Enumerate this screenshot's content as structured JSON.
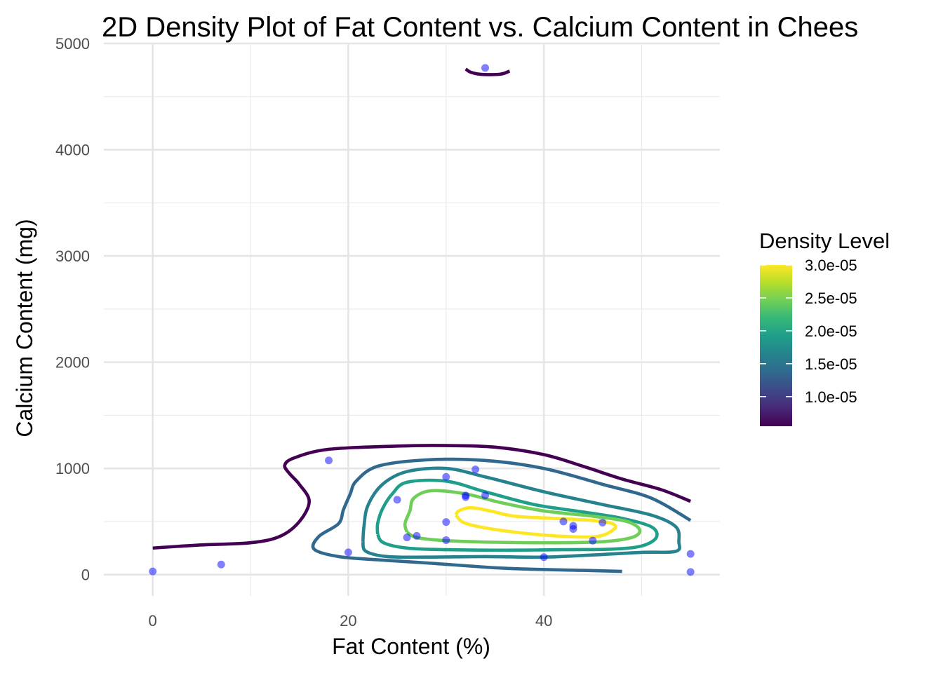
{
  "chart_data": {
    "type": "contour",
    "title": "2D Density Plot of Fat Content vs. Calcium Content in Chees",
    "xlabel": "Fat Content (%)",
    "ylabel": "Calcium Content (mg)",
    "xlim": [
      -5,
      58
    ],
    "ylim": [
      -200,
      5000
    ],
    "x_ticks": [
      0,
      20,
      40
    ],
    "x_tick_labels": [
      "0",
      "20",
      "40"
    ],
    "y_ticks": [
      0,
      1000,
      2000,
      3000,
      4000,
      5000
    ],
    "y_tick_labels": [
      "0",
      "1000",
      "2000",
      "3000",
      "4000",
      "5000"
    ],
    "grid": true,
    "points": {
      "color": "#0000ff",
      "opacity": 0.5,
      "x": [
        0,
        7,
        18,
        20,
        25,
        26,
        27,
        30,
        30,
        30,
        32,
        32,
        33,
        34,
        34,
        40,
        42,
        43,
        43,
        45,
        46,
        55,
        55
      ],
      "y": [
        30,
        95,
        1075,
        210,
        705,
        350,
        365,
        920,
        495,
        325,
        745,
        730,
        990,
        745,
        4770,
        165,
        500,
        460,
        430,
        320,
        490,
        195,
        25
      ]
    },
    "contours": [
      {
        "level": 5e-06,
        "color": "#440154",
        "paths": [
          [
            [
              0,
              250
            ],
            [
              5,
              280
            ],
            [
              10,
              300
            ],
            [
              13,
              360
            ],
            [
              15,
              500
            ],
            [
              16,
              690
            ],
            [
              15,
              850
            ],
            [
              14,
              950
            ],
            [
              13.5,
              1030
            ],
            [
              14.5,
              1100
            ],
            [
              18,
              1180
            ],
            [
              25,
              1210
            ],
            [
              30,
              1215
            ],
            [
              35,
              1200
            ],
            [
              40,
              1130
            ],
            [
              44,
              1020
            ],
            [
              48,
              900
            ],
            [
              52,
              800
            ],
            [
              55,
              690
            ]
          ],
          [
            [
              32,
              4760
            ],
            [
              32.5,
              4730
            ],
            [
              33.5,
              4710
            ],
            [
              35.5,
              4710
            ],
            [
              36.5,
              4740
            ]
          ]
        ]
      },
      {
        "level": 1e-05,
        "color": "#31688e",
        "paths": [
          [
            [
              48,
              30
            ],
            [
              44,
              40
            ],
            [
              36,
              60
            ],
            [
              28,
              110
            ],
            [
              23,
              140
            ],
            [
              19,
              170
            ],
            [
              16.5,
              240
            ],
            [
              17,
              360
            ],
            [
              19,
              480
            ],
            [
              19.5,
              610
            ],
            [
              20.2,
              760
            ],
            [
              20.8,
              880
            ],
            [
              23,
              1020
            ],
            [
              28,
              1080
            ],
            [
              34,
              1075
            ],
            [
              40,
              1000
            ],
            [
              46,
              850
            ],
            [
              51,
              720
            ],
            [
              55,
              510
            ]
          ]
        ]
      },
      {
        "level": 1.5e-05,
        "color": "#26828e",
        "paths": [
          [
            [
              21.5,
              310
            ],
            [
              21.8,
              220
            ],
            [
              24,
              170
            ],
            [
              28,
              165
            ],
            [
              34,
              170
            ],
            [
              40,
              165
            ],
            [
              46,
              190
            ],
            [
              50,
              210
            ],
            [
              53.5,
              220
            ],
            [
              53.8,
              310
            ],
            [
              53.5,
              450
            ],
            [
              51,
              560
            ],
            [
              46,
              660
            ],
            [
              40,
              780
            ],
            [
              34,
              920
            ],
            [
              30,
              1000
            ],
            [
              26,
              970
            ],
            [
              23.5,
              850
            ],
            [
              22,
              650
            ],
            [
              21.6,
              450
            ],
            [
              21.5,
              310
            ]
          ]
        ]
      },
      {
        "level": 2e-05,
        "color": "#1f9e89",
        "paths": [
          [
            [
              23,
              380
            ],
            [
              23.6,
              300
            ],
            [
              26,
              250
            ],
            [
              30,
              235
            ],
            [
              36,
              230
            ],
            [
              42,
              235
            ],
            [
              47,
              240
            ],
            [
              50,
              270
            ],
            [
              51.5,
              350
            ],
            [
              51,
              450
            ],
            [
              48,
              530
            ],
            [
              44,
              590
            ],
            [
              39,
              660
            ],
            [
              34,
              780
            ],
            [
              30,
              880
            ],
            [
              26,
              870
            ],
            [
              24.5,
              760
            ],
            [
              23.5,
              620
            ],
            [
              23,
              480
            ],
            [
              23,
              380
            ]
          ]
        ]
      },
      {
        "level": 2.5e-05,
        "color": "#6ece58",
        "paths": [
          [
            [
              26,
              400
            ],
            [
              27,
              350
            ],
            [
              30,
              320
            ],
            [
              35,
              305
            ],
            [
              41,
              300
            ],
            [
              46,
              310
            ],
            [
              49,
              350
            ],
            [
              49.8,
              420
            ],
            [
              48.5,
              500
            ],
            [
              45,
              550
            ],
            [
              40,
              600
            ],
            [
              35.5,
              680
            ],
            [
              32,
              760
            ],
            [
              28.5,
              790
            ],
            [
              26.7,
              720
            ],
            [
              26.3,
              600
            ],
            [
              25.8,
              480
            ],
            [
              26,
              400
            ]
          ]
        ]
      },
      {
        "level": 3e-05,
        "color": "#fde725",
        "paths": [
          [
            [
              31,
              560
            ],
            [
              31.8,
              490
            ],
            [
              34,
              440
            ],
            [
              38,
              390
            ],
            [
              42,
              360
            ],
            [
              45.5,
              360
            ],
            [
              47.2,
              430
            ],
            [
              47,
              480
            ],
            [
              45,
              510
            ],
            [
              41,
              530
            ],
            [
              37,
              550
            ],
            [
              34.5,
              600
            ],
            [
              32.5,
              630
            ],
            [
              31.3,
              600
            ],
            [
              31,
              560
            ]
          ]
        ]
      }
    ],
    "legend": {
      "title": "Density Level",
      "position": "right",
      "labels": [
        "3.0e-05",
        "2.5e-05",
        "2.0e-05",
        "1.5e-05",
        "1.0e-05"
      ],
      "values": [
        3e-05,
        2.5e-05,
        2e-05,
        1.5e-05,
        1e-05
      ],
      "range": [
        5.5e-06,
        3e-05
      ],
      "colormap": [
        "#fde725",
        "#b5de2b",
        "#6ece58",
        "#35b779",
        "#1f9e89",
        "#26828e",
        "#31688e",
        "#3e4989",
        "#482878",
        "#440154"
      ]
    }
  }
}
